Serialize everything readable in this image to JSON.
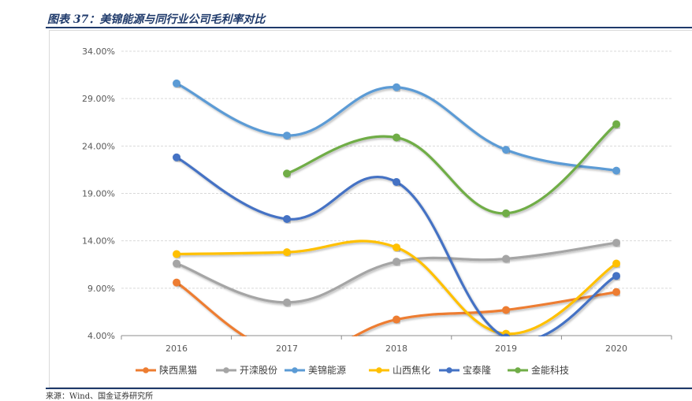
{
  "header": {
    "title": "图表 37：美锦能源与同行业公司毛利率对比"
  },
  "footer": {
    "source": "来源：Wind、国金证券研究所"
  },
  "chart_data": {
    "type": "line",
    "categories": [
      "2016",
      "2017",
      "2018",
      "2019",
      "2020"
    ],
    "ylim": [
      4,
      34
    ],
    "yticks": [
      "4.00%",
      "9.00%",
      "14.00%",
      "19.00%",
      "24.00%",
      "29.00%",
      "34.00%"
    ],
    "grid": true,
    "legend": "bottom",
    "series": [
      {
        "name": "陕西黑猫",
        "color": "#ED7D31",
        "values": [
          9.6,
          2.0,
          5.7,
          6.7,
          8.6
        ]
      },
      {
        "name": "开滦股份",
        "color": "#A5A5A5",
        "values": [
          11.6,
          7.5,
          11.8,
          12.1,
          13.8
        ]
      },
      {
        "name": "美锦能源",
        "color": "#5B9BD5",
        "values": [
          30.6,
          25.1,
          30.2,
          23.6,
          21.4
        ]
      },
      {
        "name": "山西焦化",
        "color": "#FFC000",
        "values": [
          12.6,
          12.8,
          13.3,
          4.2,
          11.6
        ]
      },
      {
        "name": "宝泰隆",
        "color": "#4472C4",
        "values": [
          22.8,
          16.3,
          20.2,
          3.8,
          10.3
        ]
      },
      {
        "name": "金能科技",
        "color": "#70AD47",
        "values": [
          null,
          21.1,
          24.9,
          16.9,
          26.3
        ]
      }
    ]
  }
}
